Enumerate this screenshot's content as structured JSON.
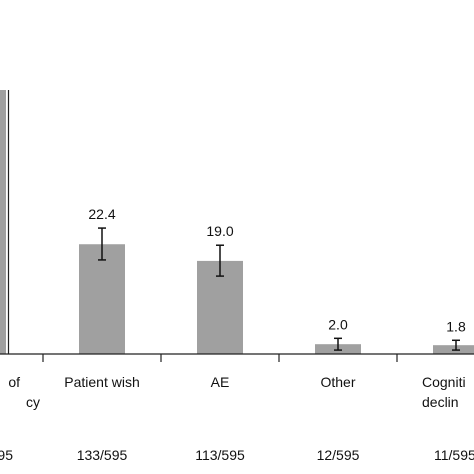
{
  "chart_data": {
    "type": "bar",
    "categories": [
      "Lack of efficacy",
      "Patient wish",
      "AE",
      "Other",
      "Cognitive decline"
    ],
    "category_label_lines": [
      [
        "of",
        "cy"
      ],
      [
        "Patient wish"
      ],
      [
        "AE"
      ],
      [
        "Other"
      ],
      [
        "Cogniti",
        "declin"
      ]
    ],
    "values": [
      null,
      22.4,
      19.0,
      2.0,
      1.8
    ],
    "value_labels": [
      "",
      "22.4",
      "19.0",
      "2.0",
      "1.8"
    ],
    "error_bars": [
      null,
      [
        19.2,
        25.7
      ],
      [
        15.9,
        22.2
      ],
      [
        0.8,
        3.2
      ],
      [
        0.8,
        2.8
      ]
    ],
    "counts": [
      "95",
      "133/595",
      "113/595",
      "12/595",
      "11/595"
    ],
    "ylim": [
      0,
      45
    ],
    "bar_color": "#a0a0a0",
    "title": "",
    "xlabel": "",
    "ylabel": ""
  }
}
